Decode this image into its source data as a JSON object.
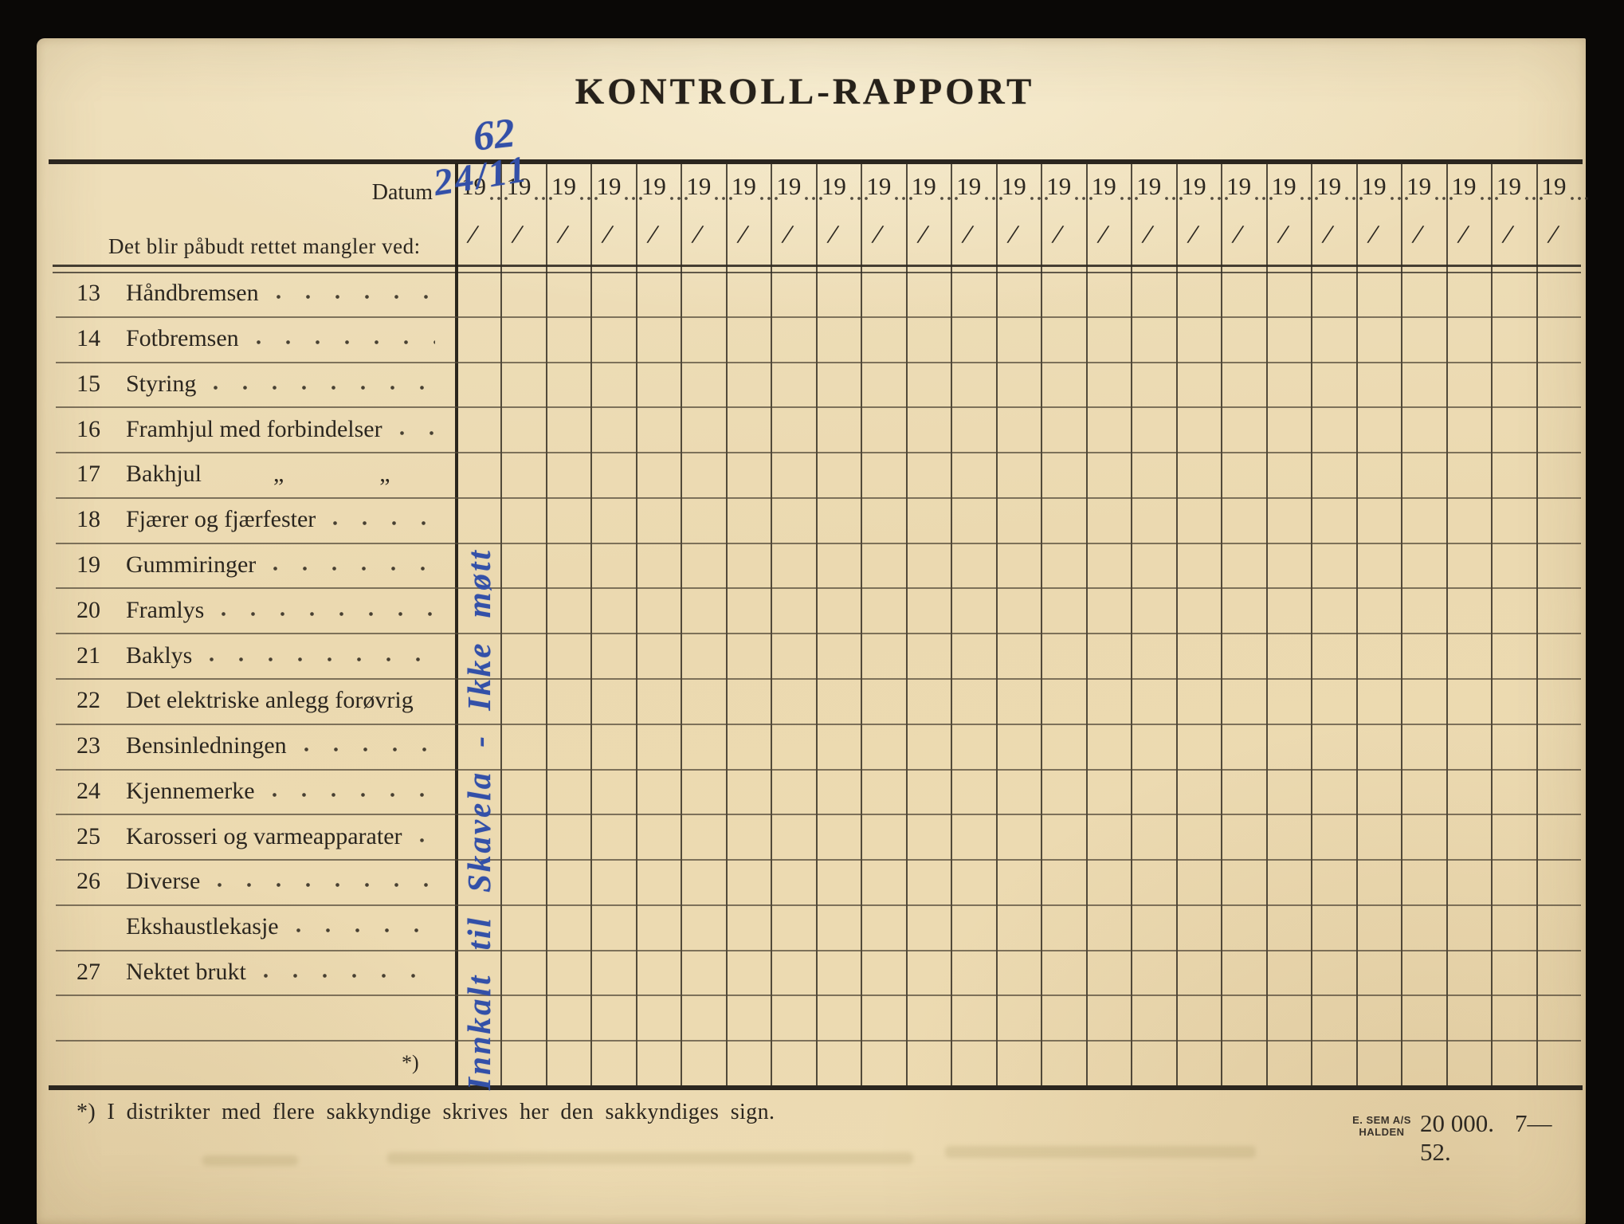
{
  "title": "KONTROLL-RAPPORT",
  "colors": {
    "paper": "#ecdcb6",
    "ink": "#2c2720",
    "handwriting_blue": "#3350a8",
    "scan_background": "#0a0806"
  },
  "table": {
    "datum_label": "Datum",
    "header_note": "Det blir påbudt rettet mangler ved:",
    "year_prefix": "19",
    "slash_mark": "/",
    "column_count": 25,
    "rows": [
      {
        "num": "13",
        "label": "Håndbremsen",
        "dots": true
      },
      {
        "num": "14",
        "label": "Fotbremsen",
        "dots": true
      },
      {
        "num": "15",
        "label": "Styring",
        "dots": true
      },
      {
        "num": "16",
        "label": "Framhjul med forbindelser",
        "dots": true
      },
      {
        "num": "17",
        "label": "Bakhjul   „    „",
        "dots": false
      },
      {
        "num": "18",
        "label": "Fjærer og fjærfester",
        "dots": true
      },
      {
        "num": "19",
        "label": "Gummiringer",
        "dots": true
      },
      {
        "num": "20",
        "label": "Framlys",
        "dots": true
      },
      {
        "num": "21",
        "label": "Baklys",
        "dots": true
      },
      {
        "num": "22",
        "label": "Det elektriske anlegg forøvrig",
        "dots": false
      },
      {
        "num": "23",
        "label": "Bensinledningen",
        "dots": true
      },
      {
        "num": "24",
        "label": "Kjennemerke",
        "dots": true
      },
      {
        "num": "25",
        "label": "Karosseri og varmeapparater",
        "dots": true
      },
      {
        "num": "26",
        "label": "Diverse",
        "dots": true
      },
      {
        "num": "",
        "label": "Ekshaustlekasje",
        "dots": true
      },
      {
        "num": "27",
        "label": "Nektet brukt",
        "dots": true
      },
      {
        "num": "",
        "label": "",
        "dots": false
      },
      {
        "num": "",
        "label": "",
        "dots": false
      }
    ],
    "footnote_mark": "*)"
  },
  "handwriting": {
    "first_column_year": "62",
    "first_column_date": "24/11",
    "vertical_note": "Innkalt til Skavela - Ikke møtt"
  },
  "footer": {
    "note": "*)  I distrikter med flere sakkyndige skrives her den sakkyndiges sign.",
    "printer_name": "E. SEM A/S",
    "printer_city": "HALDEN",
    "print_run": "20 000.",
    "print_date": "7—52."
  }
}
